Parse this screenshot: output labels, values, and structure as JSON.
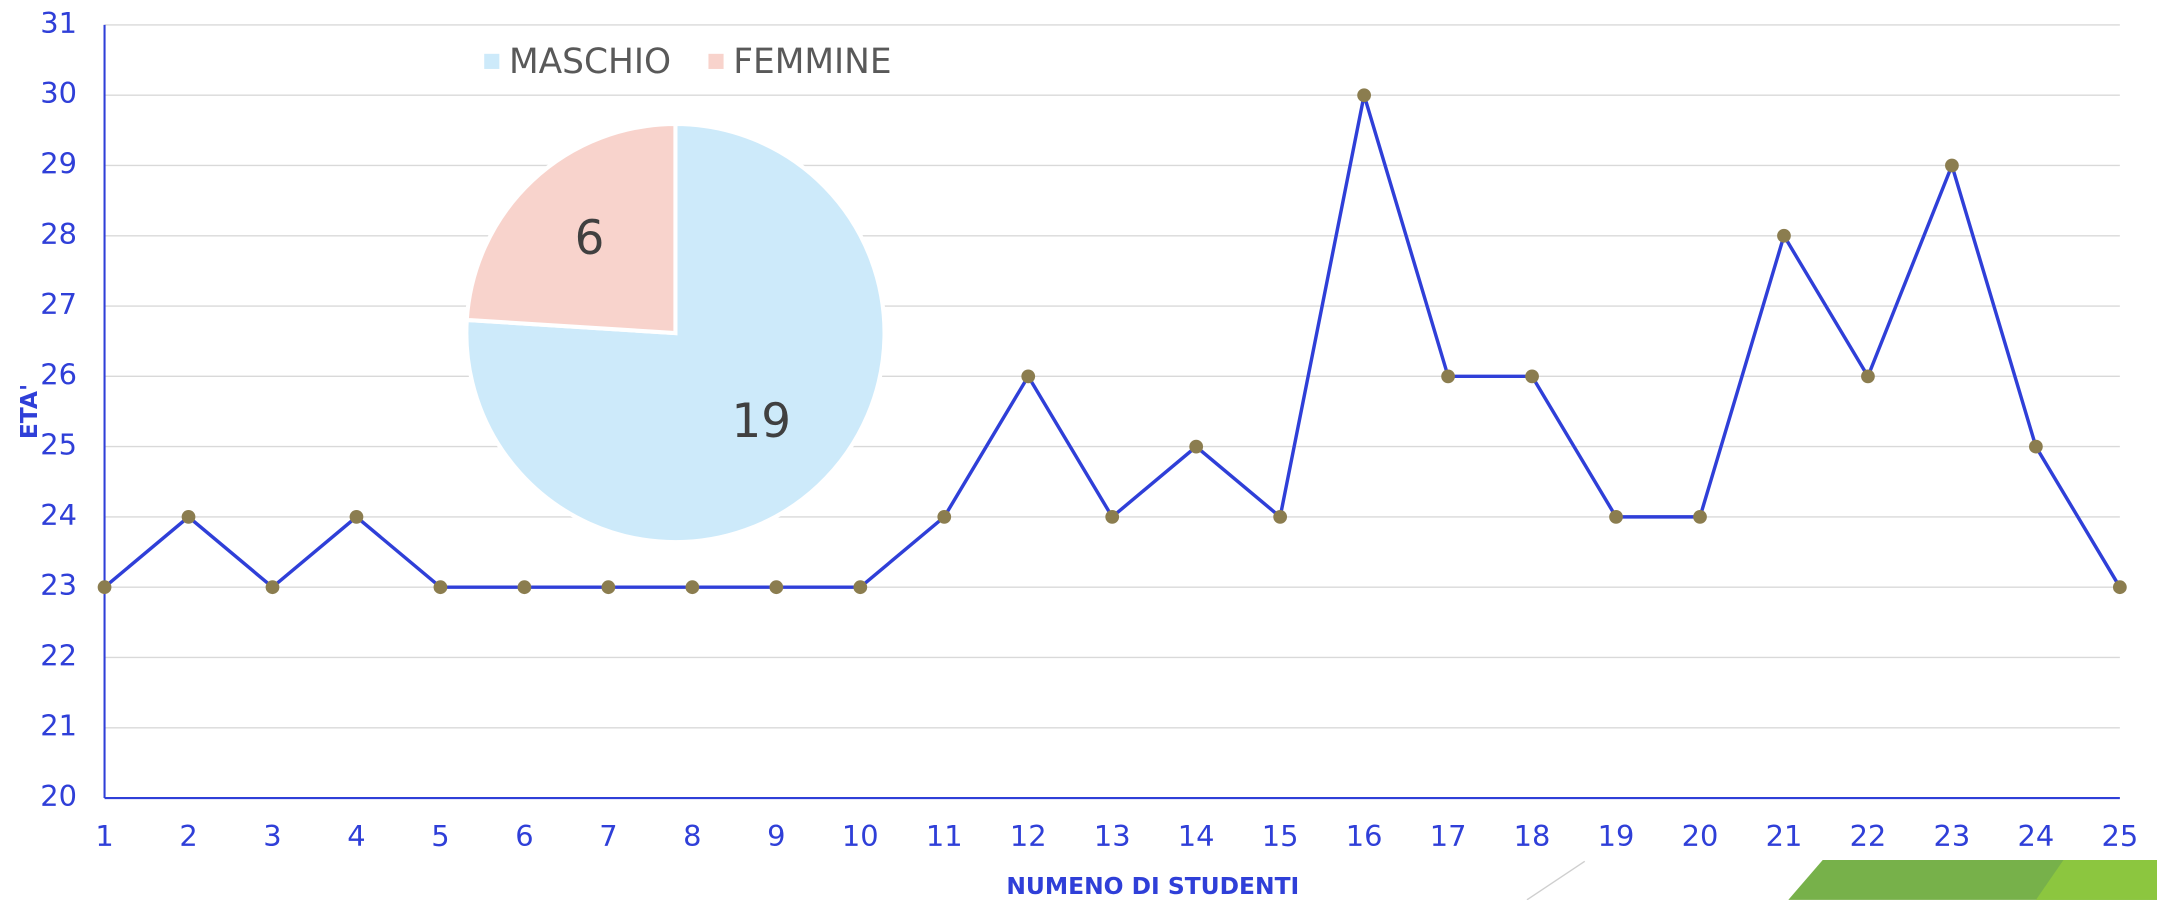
{
  "chart_data": [
    {
      "type": "line",
      "x_label": "NUMENO DI STUDENTI",
      "y_label": "ETA'",
      "x": [
        1,
        2,
        3,
        4,
        5,
        6,
        7,
        8,
        9,
        10,
        11,
        12,
        13,
        14,
        15,
        16,
        17,
        18,
        19,
        20,
        21,
        22,
        23,
        24,
        25
      ],
      "xlim": [
        1,
        25
      ],
      "xticks": [
        1,
        2,
        3,
        4,
        5,
        6,
        7,
        8,
        9,
        10,
        11,
        12,
        13,
        14,
        15,
        16,
        17,
        18,
        19,
        20,
        21,
        22,
        23,
        24,
        25
      ],
      "series": [
        {
          "color": "#2f3fd8",
          "marker_color": "#8b7d4f",
          "values": [
            23,
            24,
            23,
            24,
            23,
            23,
            23,
            23,
            23,
            23,
            24,
            26,
            24,
            25,
            24,
            30,
            26,
            26,
            24,
            24,
            28,
            26,
            29,
            25,
            23
          ]
        }
      ],
      "ylim": [
        20,
        31
      ],
      "yticks": [
        20,
        21,
        22,
        23,
        24,
        25,
        26,
        27,
        28,
        29,
        30,
        31
      ],
      "grid": true
    },
    {
      "type": "pie",
      "categories": [
        "MASCHIO",
        "FEMMINE"
      ],
      "values": [
        19,
        6
      ],
      "colors": [
        "#cdeafa",
        "#f8d3cc"
      ],
      "legend": "top"
    }
  ]
}
